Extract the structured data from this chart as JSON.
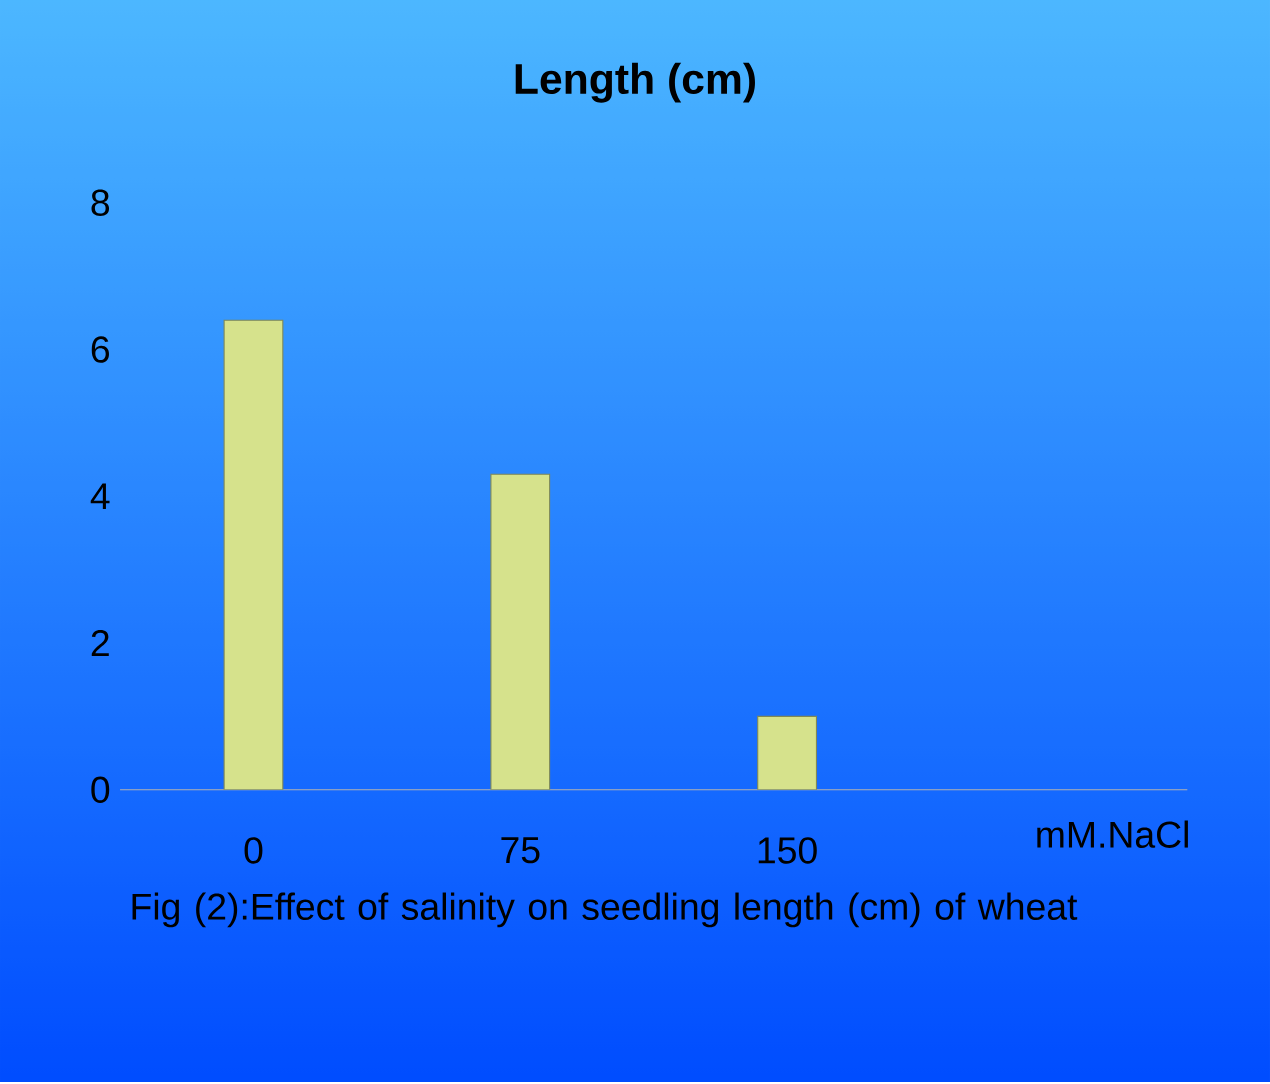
{
  "chart_data": {
    "type": "bar",
    "title": "Length  (cm)",
    "xlabel": "mM.NaCl",
    "categories": [
      "0",
      "75",
      "150"
    ],
    "values": [
      6.4,
      4.3,
      1.0
    ],
    "color": "#d6e28c",
    "ylim": [
      0,
      8
    ],
    "yticks": [
      0,
      2,
      4,
      6,
      8
    ],
    "grid": false,
    "annotations": [
      "Fig (2):Effect  of salinity on seedling length (cm) of wheat"
    ]
  }
}
